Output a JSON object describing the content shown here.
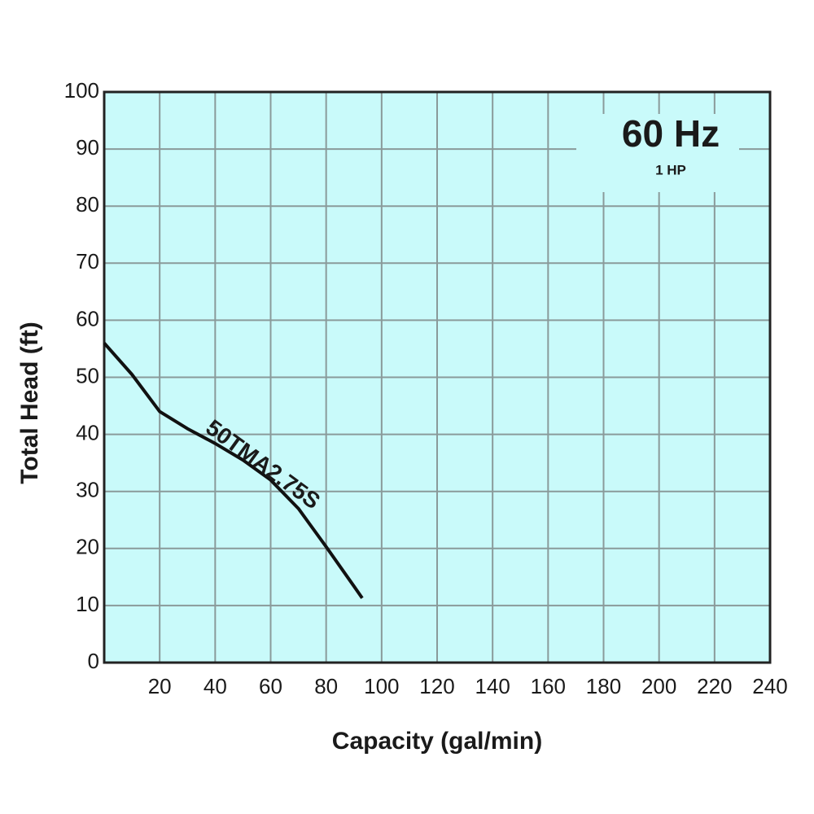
{
  "chart_data": {
    "type": "line",
    "title": "60 Hz",
    "subtitle": "1 HP",
    "x_label": "Capacity (gal/min)",
    "y_label": "Total Head (ft)",
    "xlim": [
      0,
      240
    ],
    "ylim": [
      0,
      100
    ],
    "xticks": [
      20,
      40,
      60,
      80,
      100,
      120,
      140,
      160,
      180,
      200,
      220,
      240
    ],
    "yticks": [
      0,
      10,
      20,
      30,
      40,
      50,
      60,
      70,
      80,
      90,
      100
    ],
    "grid": true,
    "background": "#c9fafa",
    "x": [
      0,
      10,
      20,
      30,
      40,
      50,
      60,
      70,
      80,
      90,
      93
    ],
    "series": [
      {
        "name": "50TMA2.75S",
        "color": "#111111",
        "values": [
          56,
          50.5,
          44,
          41,
          38.4,
          35.5,
          32,
          27,
          20.3,
          13.4,
          11.3
        ]
      }
    ]
  }
}
